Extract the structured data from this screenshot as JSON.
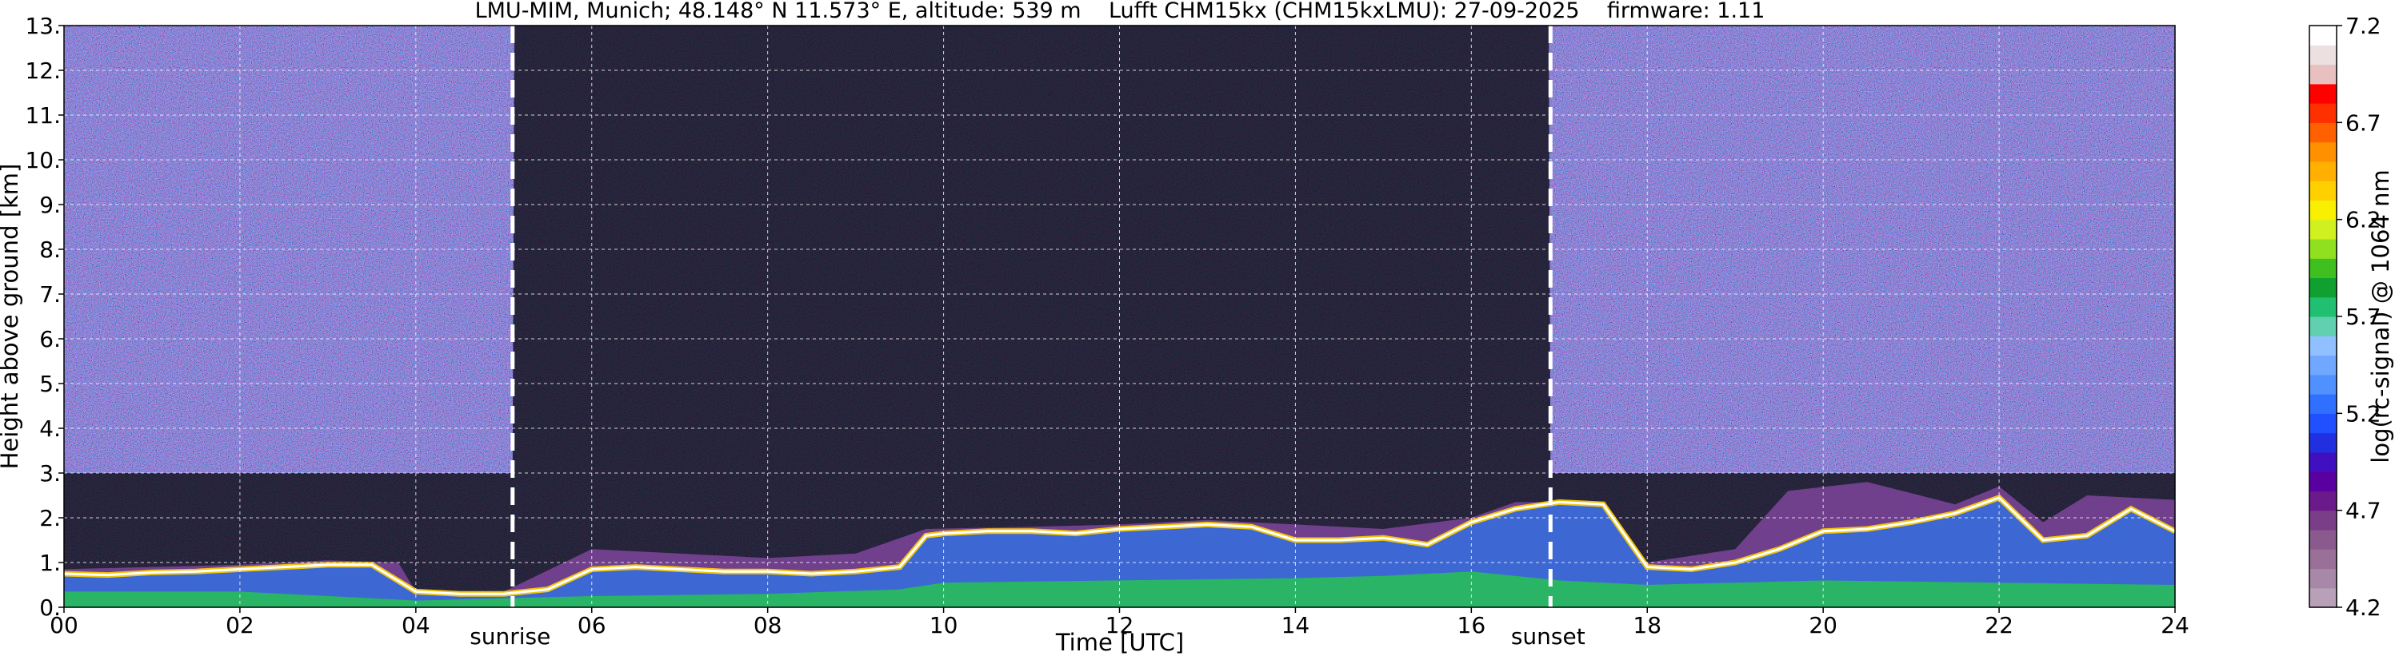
{
  "chart_data": {
    "type": "heatmap",
    "title": "LMU-MIM, Munich; 48.148° N 11.573° E, altitude: 539 m    Lufft CHM15kx (CHM15kxLMU): 27-09-2025    firmware: 1.11",
    "xlabel": "Time [UTC]",
    "ylabel": "Height above ground [km]",
    "xlim": [
      0,
      24
    ],
    "ylim": [
      0,
      13
    ],
    "x_ticks": [
      0,
      2,
      4,
      6,
      8,
      10,
      12,
      14,
      16,
      18,
      20,
      22,
      24
    ],
    "x_tick_labels": [
      "00",
      "02",
      "04",
      "06",
      "08",
      "10",
      "12",
      "14",
      "16",
      "18",
      "20",
      "22",
      "24"
    ],
    "y_ticks": [
      0,
      1,
      2,
      3,
      4,
      5,
      6,
      7,
      8,
      9,
      10,
      11,
      12,
      13
    ],
    "y_tick_labels": [
      "0.",
      "1.",
      "2.",
      "3.",
      "4.",
      "5.",
      "6.",
      "7.",
      "8.",
      "9.",
      "10.",
      "11.",
      "12.",
      "13."
    ],
    "grid": true,
    "colorbar": {
      "label": "log(rc-signal) @ 1064 nm",
      "range": [
        4.2,
        7.2
      ],
      "ticks": [
        4.2,
        4.7,
        5.2,
        5.7,
        6.2,
        6.7,
        7.2
      ],
      "tick_labels": [
        "4.2",
        "4.7",
        "5.2",
        "5.7",
        "6.2",
        "6.7",
        "7.2"
      ],
      "colors": [
        "#b8a0b8",
        "#a888a8",
        "#987098",
        "#8a5a8e",
        "#7a3e88",
        "#6a1a8a",
        "#5a00a0",
        "#4010c0",
        "#2030e0",
        "#2050ff",
        "#3070ff",
        "#5090ff",
        "#70a8ff",
        "#90c0ff",
        "#60d0b0",
        "#20c070",
        "#10a030",
        "#40c020",
        "#90e020",
        "#d0f020",
        "#f8f000",
        "#ffd000",
        "#ffb000",
        "#ff9000",
        "#ff6000",
        "#ff3000",
        "#ff0000",
        "#e8c0c0",
        "#ece0e0",
        "#ffffff"
      ]
    },
    "annotations": [
      {
        "text": "sunrise",
        "x": 5.1
      },
      {
        "text": "sunset",
        "x": 16.9
      }
    ],
    "background_layer_top_km": [
      [
        0,
        3.0
      ],
      [
        5.1,
        3.0
      ],
      [
        5.12,
        13.0
      ],
      [
        16.88,
        13.0
      ],
      [
        16.9,
        3.0
      ],
      [
        24,
        3.0
      ]
    ],
    "cloud_base_height_km": [
      [
        0,
        0.75
      ],
      [
        0.5,
        0.72
      ],
      [
        1,
        0.78
      ],
      [
        1.5,
        0.8
      ],
      [
        2,
        0.85
      ],
      [
        2.5,
        0.9
      ],
      [
        3,
        0.95
      ],
      [
        3.5,
        0.95
      ],
      [
        4,
        0.35
      ],
      [
        4.5,
        0.3
      ],
      [
        5,
        0.3
      ],
      [
        5.5,
        0.4
      ],
      [
        6,
        0.85
      ],
      [
        6.5,
        0.9
      ],
      [
        7,
        0.85
      ],
      [
        7.5,
        0.8
      ],
      [
        8,
        0.8
      ],
      [
        8.5,
        0.75
      ],
      [
        9,
        0.8
      ],
      [
        9.5,
        0.9
      ],
      [
        9.8,
        1.6
      ],
      [
        10,
        1.65
      ],
      [
        10.5,
        1.7
      ],
      [
        11,
        1.7
      ],
      [
        11.5,
        1.65
      ],
      [
        12,
        1.75
      ],
      [
        12.5,
        1.8
      ],
      [
        13,
        1.85
      ],
      [
        13.5,
        1.8
      ],
      [
        14,
        1.5
      ],
      [
        14.5,
        1.5
      ],
      [
        15,
        1.55
      ],
      [
        15.5,
        1.4
      ],
      [
        16,
        1.9
      ],
      [
        16.5,
        2.2
      ],
      [
        17,
        2.35
      ],
      [
        17.5,
        2.3
      ],
      [
        18,
        0.9
      ],
      [
        18.5,
        0.85
      ],
      [
        19,
        1.0
      ],
      [
        19.5,
        1.3
      ],
      [
        20,
        1.7
      ],
      [
        20.5,
        1.75
      ],
      [
        21,
        1.9
      ],
      [
        21.5,
        2.1
      ],
      [
        22,
        2.45
      ],
      [
        22.5,
        1.5
      ],
      [
        23,
        1.6
      ],
      [
        23.5,
        2.2
      ],
      [
        24,
        1.7
      ]
    ],
    "aerosol_layer_top_km": [
      [
        0,
        0.85
      ],
      [
        1,
        0.9
      ],
      [
        2,
        0.95
      ],
      [
        3,
        1.05
      ],
      [
        3.8,
        1.0
      ],
      [
        4,
        0.35
      ],
      [
        5,
        0.35
      ],
      [
        6,
        1.3
      ],
      [
        7,
        1.2
      ],
      [
        8,
        1.1
      ],
      [
        9,
        1.2
      ],
      [
        9.8,
        1.75
      ],
      [
        11,
        1.8
      ],
      [
        12,
        1.85
      ],
      [
        13,
        1.95
      ],
      [
        14,
        1.85
      ],
      [
        15,
        1.75
      ],
      [
        16,
        2.0
      ],
      [
        16.5,
        2.35
      ],
      [
        17.5,
        2.35
      ],
      [
        18,
        1.0
      ],
      [
        19,
        1.3
      ],
      [
        19.6,
        2.6
      ],
      [
        20.5,
        2.8
      ],
      [
        21.5,
        2.3
      ],
      [
        22,
        2.7
      ],
      [
        22.5,
        1.9
      ],
      [
        23,
        2.5
      ],
      [
        24,
        2.4
      ]
    ],
    "dense_surface_layer_top_km": [
      [
        0,
        0.35
      ],
      [
        2,
        0.35
      ],
      [
        4,
        0.15
      ],
      [
        5,
        0.2
      ],
      [
        6,
        0.25
      ],
      [
        8,
        0.3
      ],
      [
        9.5,
        0.4
      ],
      [
        10,
        0.55
      ],
      [
        12,
        0.6
      ],
      [
        14,
        0.65
      ],
      [
        15,
        0.7
      ],
      [
        16,
        0.8
      ],
      [
        17,
        0.6
      ],
      [
        18,
        0.5
      ],
      [
        19,
        0.55
      ],
      [
        20,
        0.6
      ],
      [
        22,
        0.55
      ],
      [
        24,
        0.5
      ]
    ]
  }
}
